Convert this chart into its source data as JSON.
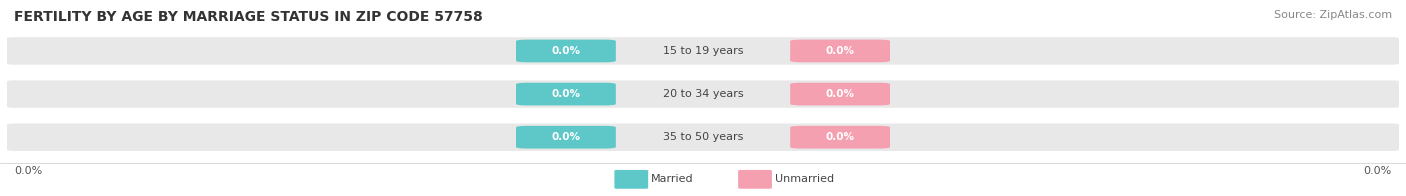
{
  "title": "FERTILITY BY AGE BY MARRIAGE STATUS IN ZIP CODE 57758",
  "source": "Source: ZipAtlas.com",
  "categories": [
    "15 to 19 years",
    "20 to 34 years",
    "35 to 50 years"
  ],
  "married_values": [
    0.0,
    0.0,
    0.0
  ],
  "unmarried_values": [
    0.0,
    0.0,
    0.0
  ],
  "married_color": "#5ec8c8",
  "unmarried_color": "#f4a0b0",
  "bar_bg_color": "#e8e8e8",
  "title_fontsize": 10,
  "source_fontsize": 8,
  "label_fontsize": 7.5,
  "category_fontsize": 8,
  "background_color": "#ffffff"
}
